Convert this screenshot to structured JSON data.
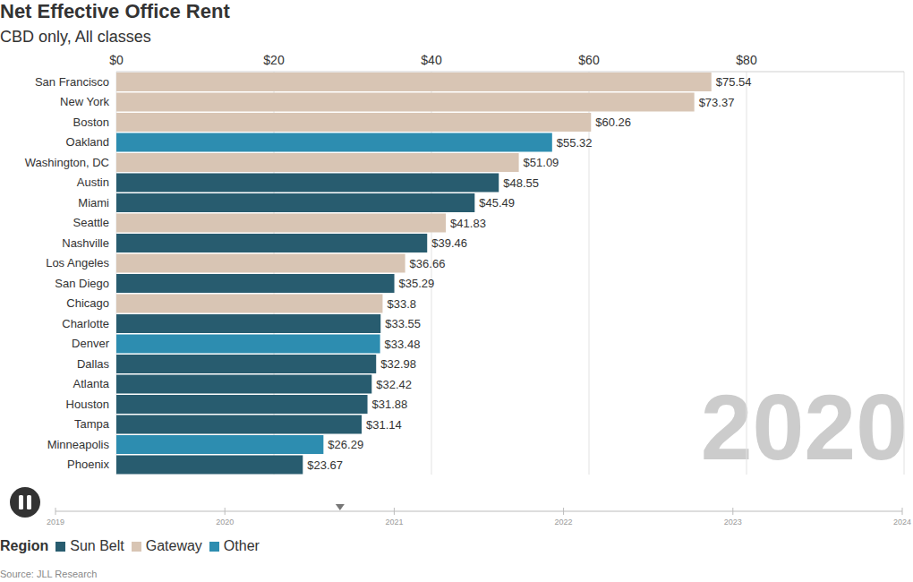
{
  "chart_data": {
    "type": "bar",
    "orientation": "horizontal",
    "title": "Net Effective Office Rent",
    "subtitle": "CBD only, All classes",
    "categories": [
      "San Francisco",
      "New York",
      "Boston",
      "Oakland",
      "Washington, DC",
      "Austin",
      "Miami",
      "Seattle",
      "Nashville",
      "Los Angeles",
      "San Diego",
      "Chicago",
      "Charlotte",
      "Denver",
      "Dallas",
      "Atlanta",
      "Houston",
      "Tampa",
      "Minneapolis",
      "Phoenix"
    ],
    "values": [
      75.54,
      73.37,
      60.26,
      55.32,
      51.09,
      48.55,
      45.49,
      41.83,
      39.46,
      36.66,
      35.29,
      33.8,
      33.55,
      33.48,
      32.98,
      32.42,
      31.88,
      31.14,
      26.29,
      23.67
    ],
    "value_labels": [
      "$75.54",
      "$73.37",
      "$60.26",
      "$55.32",
      "$51.09",
      "$48.55",
      "$45.49",
      "$41.83",
      "$39.46",
      "$36.66",
      "$35.29",
      "$33.8",
      "$33.55",
      "$33.48",
      "$32.98",
      "$32.42",
      "$31.88",
      "$31.14",
      "$26.29",
      "$23.67"
    ],
    "region_of": [
      "Gateway",
      "Gateway",
      "Gateway",
      "Other",
      "Gateway",
      "Sun Belt",
      "Sun Belt",
      "Gateway",
      "Sun Belt",
      "Gateway",
      "Sun Belt",
      "Gateway",
      "Sun Belt",
      "Other",
      "Sun Belt",
      "Sun Belt",
      "Sun Belt",
      "Sun Belt",
      "Other",
      "Sun Belt"
    ],
    "regions": [
      {
        "name": "Sun Belt",
        "color": "#285c6f"
      },
      {
        "name": "Gateway",
        "color": "#d8c5b4"
      },
      {
        "name": "Other",
        "color": "#2d8db0"
      }
    ],
    "legend_title": "Region",
    "legend": "bottom-left",
    "xlim": [
      0,
      100
    ],
    "xticks": [
      {
        "value": 0,
        "label": "$0"
      },
      {
        "value": 20,
        "label": "$20"
      },
      {
        "value": 40,
        "label": "$40"
      },
      {
        "value": 60,
        "label": "$60"
      },
      {
        "value": 80,
        "label": "$80"
      }
    ],
    "grid": true,
    "data_labels": true,
    "year": "2020",
    "timeline": {
      "xlim": [
        2019,
        2024
      ],
      "xticks": [
        2019,
        2020,
        2021,
        2022,
        2023,
        2024
      ],
      "value": 2020.68
    },
    "source": "Source: JLL Research"
  }
}
